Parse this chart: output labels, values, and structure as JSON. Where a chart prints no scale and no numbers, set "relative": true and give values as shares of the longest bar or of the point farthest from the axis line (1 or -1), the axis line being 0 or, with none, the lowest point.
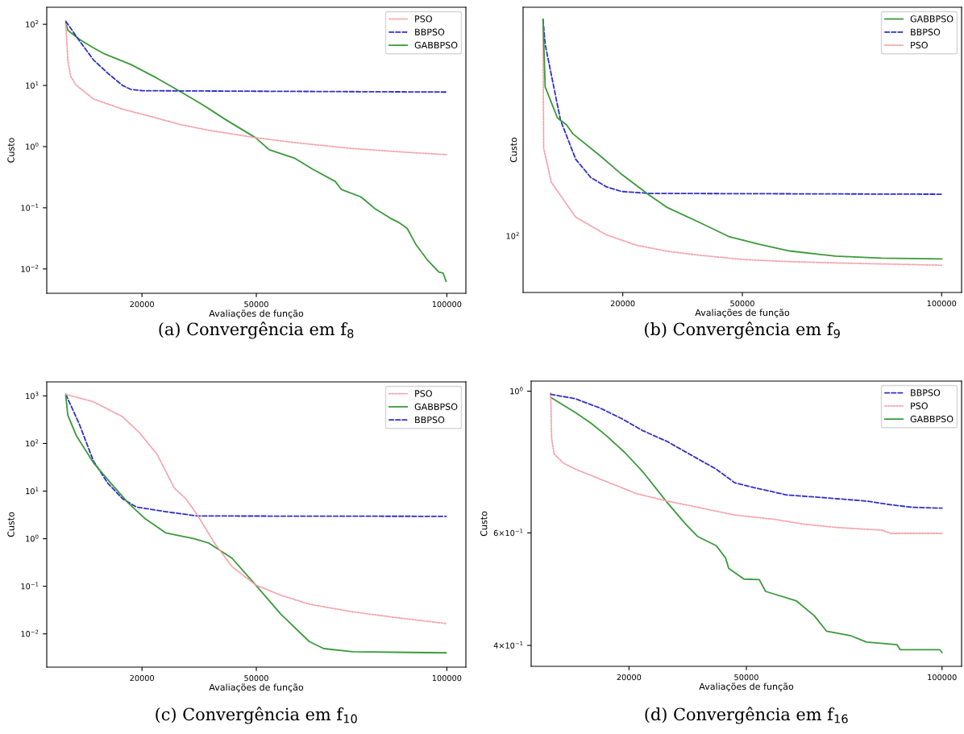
{
  "chart_data": [
    {
      "type": "line",
      "title": "(a) Convergência em f$_{8}$",
      "xlabel": "Avaliações de função",
      "ylabel": "Custo",
      "log": "y",
      "legend": "top right",
      "xlim": [
        -5000,
        105000
      ],
      "xticks": [
        20000,
        50000,
        100000
      ],
      "ylim": [
        0.004,
        190
      ],
      "yticks": [
        {
          "value": 0.01,
          "label": "10$^{−2}$"
        },
        {
          "value": 0.1,
          "label": "10$^{−1}$"
        },
        {
          "value": 1,
          "label": "10$^{0}$"
        },
        {
          "value": 10,
          "label": "10$^{1}$"
        },
        {
          "value": 100,
          "label": "10$^{2}$"
        }
      ],
      "series": [
        {
          "name": "PSO",
          "color": "#f4a3ab",
          "line_style": "dotted",
          "x": [
            0,
            530,
            1280,
            2800,
            7300,
            14900,
            22400,
            30000,
            37500,
            49800,
            60200,
            75300,
            90400,
            99800
          ],
          "values": [
            100,
            26,
            14,
            10,
            6,
            4.1,
            3.1,
            2.3,
            1.85,
            1.4,
            1.16,
            0.93,
            0.8,
            0.74
          ]
        },
        {
          "name": "BBPSO",
          "color": "#3030c8",
          "line_style": "dashed",
          "x": [
            0,
            3550,
            7300,
            11100,
            14900,
            17100,
            20200,
            99800
          ],
          "values": [
            112,
            54,
            26,
            15.7,
            10,
            8.6,
            8.2,
            7.8
          ]
        },
        {
          "name": "GABBPSO",
          "color": "#3a9a3a",
          "line_style": "solid",
          "x": [
            0,
            530,
            3550,
            7300,
            10300,
            17100,
            23900,
            30000,
            36000,
            42000,
            49800,
            53400,
            60200,
            64700,
            70700,
            72300,
            77500,
            81300,
            85100,
            87300,
            89600,
            91900,
            94900,
            97900,
            99000,
            99800
          ],
          "values": [
            105,
            80,
            57,
            41,
            32.5,
            22,
            13.2,
            8,
            4.8,
            2.75,
            1.4,
            0.89,
            0.64,
            0.43,
            0.27,
            0.2,
            0.15,
            0.095,
            0.068,
            0.058,
            0.046,
            0.025,
            0.014,
            0.0089,
            0.0086,
            0.0063
          ]
        }
      ]
    },
    {
      "type": "line",
      "title": "(b) Convergência em f$_{9}$",
      "xlabel": "Avaliações de função",
      "ylabel": "Custo",
      "legend": "top right",
      "xlim": [
        -5000,
        105000
      ],
      "xticks": [
        20000,
        50000,
        100000
      ],
      "relative": true,
      "annotations": [
        "10$^{2}$"
      ],
      "series": [
        {
          "name": "GABBPSO",
          "color": "#3a9a3a",
          "line_style": "solid",
          "x": [
            0,
            540,
            3600,
            5900,
            7440,
            14300,
            19700,
            26600,
            31200,
            38900,
            46600,
            54200,
            61900,
            73400,
            84900,
            100000
          ],
          "values": [
            1,
            0.753,
            0.64,
            0.614,
            0.582,
            0.501,
            0.433,
            0.357,
            0.311,
            0.259,
            0.205,
            0.177,
            0.152,
            0.133,
            0.126,
            0.123
          ]
        },
        {
          "name": "BBPSO",
          "color": "#3030c8",
          "line_style": "dashed",
          "x": [
            0,
            540,
            4370,
            8200,
            12000,
            15900,
            19700,
            26600,
            100000
          ],
          "values": [
            1,
            0.909,
            0.632,
            0.488,
            0.421,
            0.387,
            0.37,
            0.363,
            0.36
          ]
        },
        {
          "name": "PSO",
          "color": "#f4a3ab",
          "line_style": "dotted",
          "x": [
            0,
            150,
            2070,
            8200,
            15900,
            23500,
            31200,
            38900,
            50000,
            61900,
            77200,
            100000
          ],
          "values": [
            1,
            0.529,
            0.404,
            0.276,
            0.211,
            0.173,
            0.151,
            0.137,
            0.121,
            0.113,
            0.107,
            0.1
          ]
        }
      ]
    },
    {
      "type": "line",
      "title": "(c) Convergência em f$_{10}$",
      "xlabel": "Avaliações de função",
      "ylabel": "Custo",
      "log": "y",
      "legend": "top right",
      "xlim": [
        -5000,
        105000
      ],
      "xticks": [
        20000,
        50000,
        100000
      ],
      "ylim": [
        0.002,
        1970
      ],
      "yticks": [
        {
          "value": 0.01,
          "label": "10$^{−2}$"
        },
        {
          "value": 0.1,
          "label": "10$^{−1}$"
        },
        {
          "value": 1,
          "label": "10$^{0}$"
        },
        {
          "value": 10,
          "label": "10$^{1}$"
        },
        {
          "value": 100,
          "label": "10$^{2}$"
        },
        {
          "value": 1000,
          "label": "10$^{3}$"
        }
      ],
      "series": [
        {
          "name": "PSO",
          "color": "#f4a3ab",
          "line_style": "dotted",
          "x": [
            0,
            7300,
            14900,
            19400,
            23900,
            28500,
            31500,
            34500,
            39000,
            43600,
            49800,
            56400,
            63900,
            75300,
            86600,
            99800
          ],
          "values": [
            1080,
            750,
            365,
            166,
            60,
            11.5,
            6.9,
            3.2,
            0.81,
            0.26,
            0.107,
            0.065,
            0.042,
            0.029,
            0.022,
            0.0165
          ]
        },
        {
          "name": "GABBPSO",
          "color": "#3a9a3a",
          "line_style": "solid",
          "x": [
            0,
            530,
            2800,
            7300,
            11900,
            16400,
            20900,
            26200,
            33700,
            37500,
            43600,
            49800,
            56400,
            63900,
            67700,
            75300,
            99800
          ],
          "values": [
            1000,
            392,
            144,
            39,
            14.4,
            5.6,
            2.6,
            1.33,
            1.0,
            0.81,
            0.39,
            0.107,
            0.026,
            0.0069,
            0.0049,
            0.0042,
            0.004
          ]
        },
        {
          "name": "BBPSO",
          "color": "#3030c8",
          "line_style": "dashed",
          "x": [
            0,
            3550,
            7300,
            11100,
            14900,
            18600,
            26200,
            34500,
            99800
          ],
          "values": [
            1080,
            255,
            42,
            14.4,
            6.9,
            4.6,
            3.7,
            3.0,
            2.95
          ]
        }
      ]
    },
    {
      "type": "line",
      "title": "(d) Convergência em f$_{16}$",
      "xlabel": "Avaliações de função",
      "ylabel": "Custo",
      "log": "y",
      "legend": "top right",
      "xlim": [
        -5000,
        105000
      ],
      "xticks": [
        20000,
        50000,
        100000
      ],
      "ylim": [
        0.371,
        1.037
      ],
      "yticks": [
        {
          "value": 0.4,
          "label": "4×10$^{−1}$"
        },
        {
          "value": 0.6,
          "label": "6×10$^{−1}$"
        },
        {
          "value": 1,
          "label": "10$^{0}$"
        }
      ],
      "series": [
        {
          "name": "BBPSO",
          "color": "#3030c8",
          "line_style": "dashed",
          "x": [
            0,
            6300,
            12600,
            18100,
            23600,
            29800,
            36100,
            42300,
            47000,
            51700,
            60300,
            68900,
            80700,
            86200,
            92400,
            100000
          ],
          "values": [
            0.989,
            0.973,
            0.941,
            0.906,
            0.867,
            0.834,
            0.793,
            0.755,
            0.719,
            0.707,
            0.688,
            0.682,
            0.673,
            0.665,
            0.658,
            0.656
          ]
        },
        {
          "name": "PSO",
          "color": "#f4a3ab",
          "line_style": "dotted",
          "x": [
            0,
            230,
            860,
            3200,
            6300,
            14200,
            22000,
            29800,
            37600,
            47000,
            57200,
            65000,
            72900,
            84600,
            86900,
            100000
          ],
          "values": [
            0.994,
            0.843,
            0.798,
            0.772,
            0.755,
            0.722,
            0.691,
            0.673,
            0.658,
            0.64,
            0.63,
            0.619,
            0.612,
            0.606,
            0.599,
            0.599
          ]
        },
        {
          "name": "GABBPSO",
          "color": "#3a9a3a",
          "line_style": "solid",
          "x": [
            0,
            6300,
            10300,
            14200,
            18900,
            23600,
            26700,
            29800,
            34500,
            37600,
            42300,
            44700,
            45500,
            49400,
            53300,
            54900,
            62700,
            67400,
            70500,
            76800,
            80700,
            88500,
            89300,
            99400,
            100000
          ],
          "values": [
            0.978,
            0.926,
            0.891,
            0.852,
            0.802,
            0.747,
            0.707,
            0.669,
            0.619,
            0.592,
            0.573,
            0.548,
            0.528,
            0.508,
            0.507,
            0.486,
            0.47,
            0.445,
            0.421,
            0.414,
            0.405,
            0.401,
            0.394,
            0.394,
            0.39
          ]
        }
      ]
    }
  ]
}
